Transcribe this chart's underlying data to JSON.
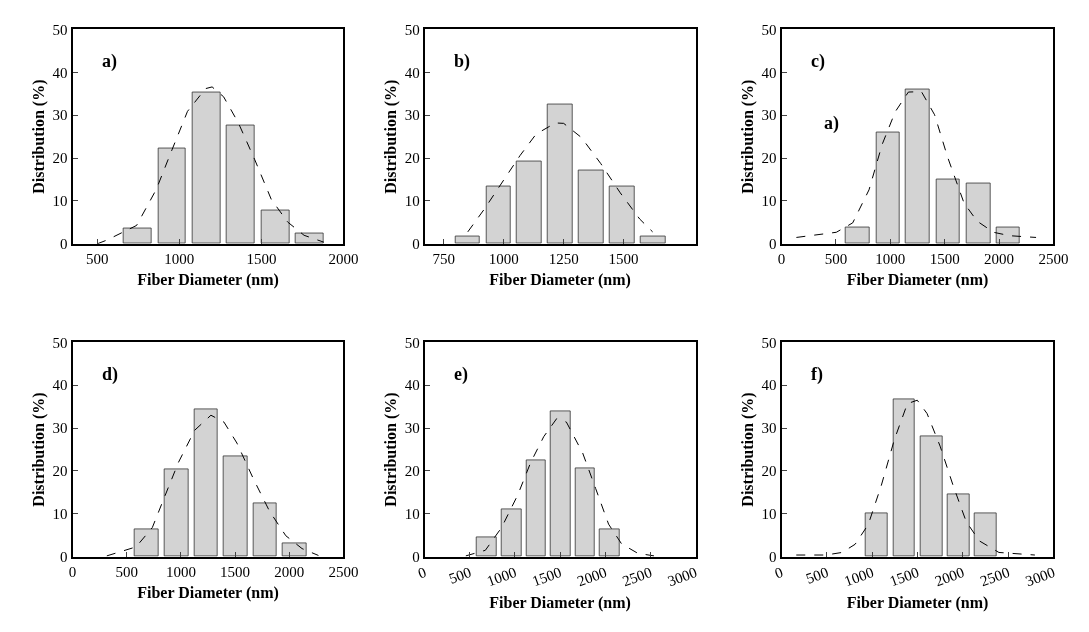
{
  "chart_data": [
    {
      "type": "bar",
      "xlabel": "Fiber Diameter (nm)",
      "ylabel": "Distribution (%)",
      "annotations": [
        "a)"
      ],
      "xlim": [
        350,
        2000
      ],
      "xticks": [
        500,
        1000,
        1500,
        2000
      ],
      "ylim": [
        0,
        50
      ],
      "yticks": [
        0,
        10,
        20,
        30,
        40,
        50
      ],
      "series": [
        {
          "color": "#d3d3d3",
          "x": [
            745,
            955,
            1165,
            1375,
            1585,
            1795
          ],
          "values": [
            3.7,
            22.2,
            35.4,
            27.5,
            7.7,
            2.5
          ]
        },
        {
          "type": "line",
          "color": "#000000",
          "line_style": "dashed",
          "marker": "none",
          "x": [
            500,
            560,
            740,
            860,
            950,
            1050,
            1160,
            1200,
            1270,
            1360,
            1460,
            1560,
            1660,
            1760,
            1880
          ],
          "values": [
            0,
            0.9,
            4.3,
            12.7,
            21.4,
            30.9,
            36.2,
            36.6,
            34.3,
            28.2,
            19.6,
            10.4,
            5.1,
            2.0,
            0.4
          ]
        }
      ]
    },
    {
      "type": "bar",
      "xlabel": "Fiber Diameter (nm)",
      "ylabel": "Distribution (%)",
      "annotations": [
        "b)"
      ],
      "xlim": [
        670,
        1800
      ],
      "xticks": [
        750,
        1000,
        1250,
        1500
      ],
      "ylim": [
        0,
        50
      ],
      "yticks": [
        0,
        10,
        20,
        30,
        40,
        50
      ],
      "series": [
        {
          "color": "#d3d3d3",
          "x": [
            850,
            978,
            1107,
            1236,
            1365,
            1493,
            1623
          ],
          "values": [
            1.7,
            13.3,
            19.3,
            32.5,
            17.2,
            13.3,
            1.7
          ]
        },
        {
          "type": "line",
          "color": "#000000",
          "line_style": "dashed",
          "marker": "none",
          "x": [
            850,
            919,
            1000,
            1068,
            1135,
            1216,
            1250,
            1324,
            1405,
            1486,
            1567,
            1621
          ],
          "values": [
            2.8,
            8.1,
            14.9,
            20.6,
            25.6,
            28.2,
            28.1,
            24.8,
            18.7,
            11.9,
            5.8,
            2.8
          ]
        }
      ]
    },
    {
      "type": "bar",
      "xlabel": "Fiber Diameter (nm)",
      "ylabel": "Distribution (%)",
      "annotations": [
        "c)",
        "a)"
      ],
      "xlim": [
        0,
        2500
      ],
      "xticks": [
        0,
        500,
        1000,
        1500,
        2000,
        2500
      ],
      "ylim": [
        0,
        50
      ],
      "yticks": [
        0,
        10,
        20,
        30,
        40,
        50
      ],
      "series": [
        {
          "color": "#d3d3d3",
          "x": [
            700,
            980,
            1250,
            1530,
            1810,
            2085
          ],
          "values": [
            3.8,
            26.0,
            36.1,
            15.0,
            14.0,
            3.8
          ]
        },
        {
          "type": "line",
          "color": "#000000",
          "line_style": "dashed",
          "marker": "none",
          "x": [
            136,
            503,
            654,
            804,
            925,
            1045,
            1166,
            1286,
            1407,
            1527,
            1678,
            1798,
            1949,
            2099,
            2340
          ],
          "values": [
            1.5,
            2.7,
            4.9,
            12.6,
            23.2,
            30.8,
            35.4,
            35.5,
            30.1,
            20.2,
            9.5,
            5.3,
            2.7,
            1.9,
            1.5
          ]
        }
      ]
    },
    {
      "type": "bar",
      "xlabel": "Fiber Diameter (nm)",
      "ylabel": "Distribution (%)",
      "annotations": [
        "d)"
      ],
      "xlim": [
        0,
        2500
      ],
      "xticks": [
        0,
        500,
        1000,
        1500,
        2000,
        2500
      ],
      "ylim": [
        0,
        50
      ],
      "yticks": [
        0,
        10,
        20,
        30,
        40,
        50
      ],
      "series": [
        {
          "color": "#d3d3d3",
          "x": [
            685,
            958,
            1231,
            1504,
            1777,
            2050
          ],
          "values": [
            6.3,
            20.3,
            34.3,
            23.5,
            12.4,
            3.1
          ]
        },
        {
          "type": "line",
          "color": "#000000",
          "line_style": "dashed",
          "marker": "none",
          "x": [
            316,
            586,
            736,
            856,
            977,
            1127,
            1277,
            1397,
            1517,
            1668,
            1818,
            1968,
            2118,
            2269
          ],
          "values": [
            0.2,
            2.3,
            6.8,
            14.4,
            22.0,
            29.5,
            33.0,
            31.4,
            26.5,
            18.2,
            10.6,
            4.9,
            1.9,
            0.3
          ]
        }
      ]
    },
    {
      "type": "bar",
      "xlabel": "Fiber Diameter (nm)",
      "ylabel": "Distribution (%)",
      "annotations": [
        "e)"
      ],
      "xlim": [
        0,
        3000
      ],
      "xticks": [
        0,
        500,
        1000,
        1500,
        2000,
        2500,
        3000
      ],
      "ylim": [
        0,
        50
      ],
      "yticks": [
        0,
        10,
        20,
        30,
        40,
        50
      ],
      "series": [
        {
          "color": "#d3d3d3",
          "x": [
            686,
            963,
            1232,
            1506,
            1775,
            2048
          ],
          "values": [
            4.5,
            11.1,
            22.4,
            33.9,
            20.7,
            6.4
          ]
        },
        {
          "type": "line",
          "color": "#000000",
          "line_style": "dashed",
          "marker": "none",
          "x": [
            456,
            672,
            852,
            1031,
            1175,
            1319,
            1462,
            1570,
            1750,
            1894,
            2037,
            2181,
            2361,
            2540
          ],
          "values": [
            0.2,
            1.5,
            6.8,
            14.4,
            22.0,
            28.0,
            32.2,
            31.4,
            24.2,
            15.9,
            7.6,
            3.0,
            0.8,
            0.2
          ]
        }
      ]
    },
    {
      "type": "bar",
      "xlabel": "Fiber Diameter (nm)",
      "ylabel": "Distribution (%)",
      "annotations": [
        "f)"
      ],
      "xlim": [
        0,
        3000
      ],
      "xticks": [
        0,
        500,
        1000,
        1500,
        2000,
        2500,
        3000
      ],
      "ylim": [
        0,
        50
      ],
      "yticks": [
        0,
        10,
        20,
        30,
        40,
        50
      ],
      "series": [
        {
          "color": "#d3d3d3",
          "x": [
            1050,
            1352,
            1652,
            1952,
            2254
          ],
          "values": [
            10.1,
            36.8,
            28.0,
            14.6,
            10.1
          ]
        },
        {
          "type": "line",
          "color": "#000000",
          "line_style": "dashed",
          "marker": "none",
          "x": [
            162,
            487,
            667,
            811,
            956,
            1100,
            1244,
            1388,
            1497,
            1605,
            1749,
            1893,
            2037,
            2182,
            2398,
            2795
          ],
          "values": [
            0.4,
            0.4,
            1.0,
            2.9,
            7.5,
            16.6,
            27.3,
            35.7,
            36.5,
            33.4,
            25.8,
            16.6,
            8.2,
            3.7,
            1.0,
            0.4
          ]
        }
      ]
    }
  ]
}
